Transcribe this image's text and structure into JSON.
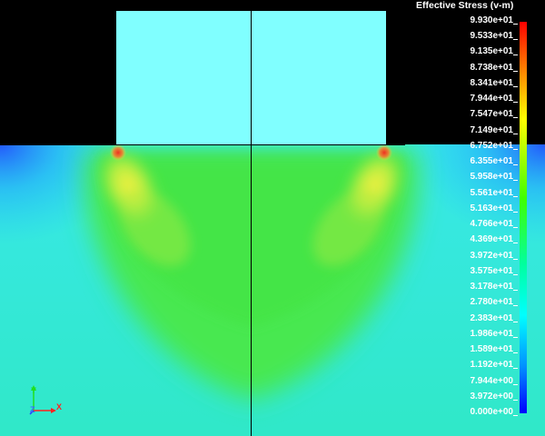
{
  "legend": {
    "title": "Effective Stress (v-m)",
    "labels": [
      "9.930e+01",
      "9.533e+01",
      "9.135e+01",
      "8.738e+01",
      "8.341e+01",
      "7.944e+01",
      "7.547e+01",
      "7.149e+01",
      "6.752e+01",
      "6.355e+01",
      "5.958e+01",
      "5.561e+01",
      "5.163e+01",
      "4.766e+01",
      "4.369e+01",
      "3.972e+01",
      "3.575e+01",
      "3.178e+01",
      "2.780e+01",
      "2.383e+01",
      "1.986e+01",
      "1.589e+01",
      "1.192e+01",
      "7.944e+00",
      "3.972e+00",
      "0.000e+00"
    ]
  },
  "triad": {
    "x_label": "X",
    "y_label": "Y",
    "z_label": "Z",
    "x_color": "#ff2020",
    "y_color": "#20e020",
    "z_color": "#2040ff"
  },
  "colors": {
    "background": "#000000",
    "punch": "#80ffff",
    "body_base": "#40e8e0",
    "green_band": "#40e840",
    "yellow_hot": "#f0f040",
    "red_hot": "#f04020",
    "divider": "#000000"
  }
}
